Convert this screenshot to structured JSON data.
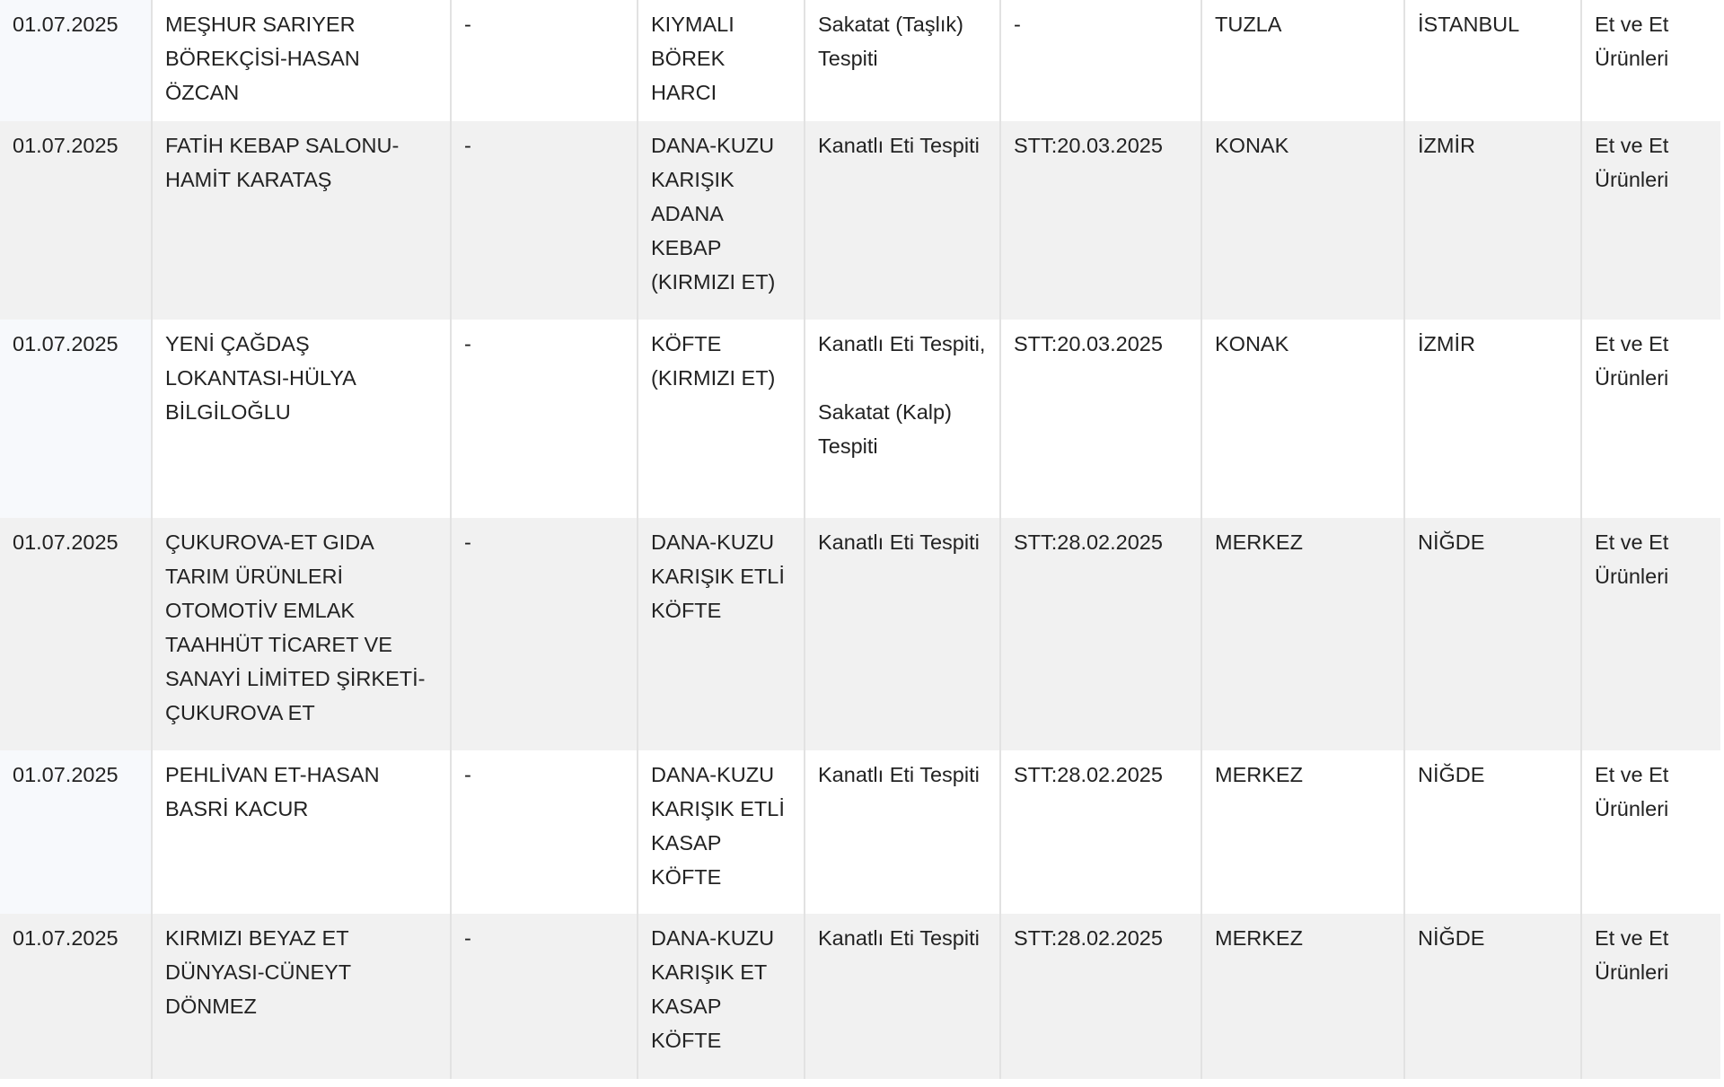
{
  "rows": [
    {
      "date": "01.07.2025",
      "firm": "MEŞHUR SARIYER BÖREKÇİSİ-HASAN ÖZCAN",
      "brand": "-",
      "product": "KIYMALI BÖREK HARCI",
      "violation": [
        "Sakatat (Taşlık) Tespiti"
      ],
      "batch": "-",
      "district": "TUZLA",
      "province": "İSTANBUL",
      "group": "Et ve Et Ürünleri"
    },
    {
      "date": "01.07.2025",
      "firm": "FATİH KEBAP SALONU-HAMİT KARATAŞ",
      "brand": "-",
      "product": "DANA-KUZU KARIŞIK ADANA KEBAP (KIRMIZI ET)",
      "violation": [
        "Kanatlı Eti Tespiti"
      ],
      "batch": "STT:20.03.2025",
      "district": "KONAK",
      "province": "İZMİR",
      "group": "Et ve Et Ürünleri"
    },
    {
      "date": "01.07.2025",
      "firm": "YENİ ÇAĞDAŞ LOKANTASI-HÜLYA BİLGİLOĞLU",
      "brand": "-",
      "product": "KÖFTE (KIRMIZI ET)",
      "violation": [
        "Kanatlı Eti Tespiti,",
        "Sakatat (Kalp) Tespiti"
      ],
      "batch": "STT:20.03.2025",
      "district": "KONAK",
      "province": "İZMİR",
      "group": "Et ve Et Ürünleri"
    },
    {
      "date": "01.07.2025",
      "firm": "ÇUKUROVA-ET GIDA TARIM ÜRÜNLERİ OTOMOTİV EMLAK TAAHHÜT TİCARET VE SANAYİ LİMİTED ŞİRKETİ-ÇUKUROVA ET",
      "brand": "-",
      "product": "DANA-KUZU KARIŞIK ETLİ KÖFTE",
      "violation": [
        "Kanatlı Eti Tespiti"
      ],
      "batch": "STT:28.02.2025",
      "district": "MERKEZ",
      "province": "NİĞDE",
      "group": "Et ve Et Ürünleri"
    },
    {
      "date": "01.07.2025",
      "firm": "PEHLİVAN ET-HASAN BASRİ KACUR",
      "brand": "-",
      "product": "DANA-KUZU KARIŞIK ETLİ KASAP KÖFTE",
      "violation": [
        "Kanatlı Eti Tespiti"
      ],
      "batch": "STT:28.02.2025",
      "district": "MERKEZ",
      "province": "NİĞDE",
      "group": "Et ve Et Ürünleri"
    },
    {
      "date": "01.07.2025",
      "firm": "KIRMIZI BEYAZ ET DÜNYASI-CÜNEYT DÖNMEZ",
      "brand": "-",
      "product": "DANA-KUZU KARIŞIK ET KASAP KÖFTE",
      "violation": [
        "Kanatlı Eti Tespiti"
      ],
      "batch": "STT:28.02.2025",
      "district": "MERKEZ",
      "province": "NİĞDE",
      "group": "Et ve Et Ürünleri"
    }
  ]
}
